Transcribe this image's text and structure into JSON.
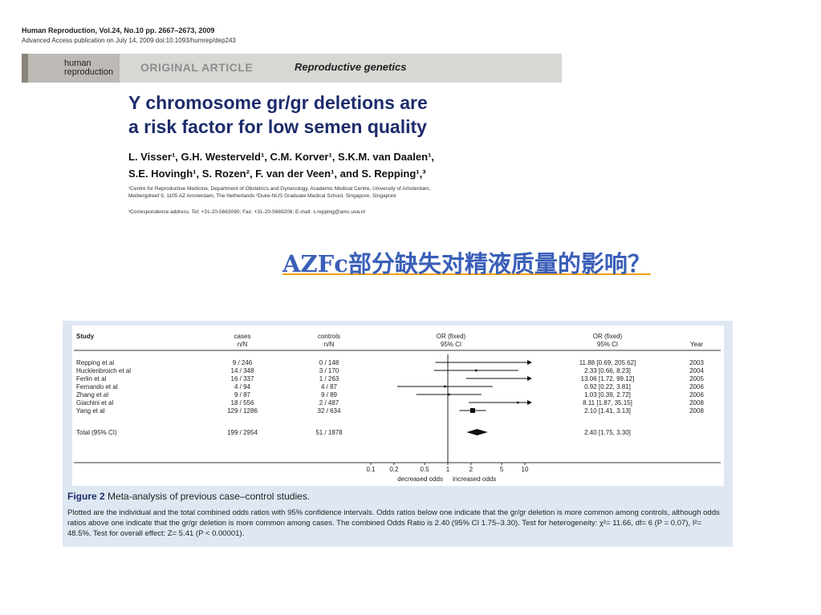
{
  "header": {
    "journal_line": "Human Reproduction, Vol.24, No.10 pp. 2667–2673, 2009",
    "advance_line": "Advanced Access publication on July 14, 2009    doi:10.1093/humrep/dep243",
    "logo_line1": "human",
    "logo_line2": "reproduction",
    "article_type": "ORIGINAL ARTICLE",
    "article_subtype": "Reproductive genetics"
  },
  "article": {
    "title_line1": "Y chromosome gr/gr deletions are",
    "title_line2": "a risk factor for low semen quality",
    "authors_line1": "L. Visser¹, G.H. Westerveld¹, C.M. Korver¹, S.K.M. van Daalen¹,",
    "authors_line2": "S.E. Hovingh¹, S. Rozen², F. van der Veen¹, and S. Repping¹,³",
    "affiliation_line1": "¹Centre for Reproductive Medicine, Department of Obstetrics and Gynecology, Academic Medical Centre, University of Amsterdam,",
    "affiliation_line2": "Meibergdreef 9, 1105 AZ Amsterdam, The Netherlands ²Duke-NUS Graduate Medical School, Singapore, Singapore",
    "correspondence": "³Correspondence address. Tel: +31-20-5663090; Fax: +31-20-5669206; E-mail: s.repping@amc.uva.nl"
  },
  "question_text": "AZFc部分缺失对精液质量的影响？",
  "figure": {
    "caption_label": "Figure 2",
    "caption_title": "Meta-analysis of previous case–control studies.",
    "caption_body": "Plotted are the individual and the total combined odds ratios with 95% confidence intervals. Odds ratios below one indicate that the gr/gr deletion is more common among controls, although odds ratios above one indicate that the gr/gr deletion is more common among cases. The combined Odds Ratio is 2.40 (95% CI 1.75–3.30). Test for heterogeneity: χ²= 11.66, df= 6 (P = 0.07), I²= 48.5%. Test for overall effect: Z= 5.41 (P < 0.00001)."
  },
  "chart_data": {
    "type": "forest",
    "columns": {
      "study": "Study",
      "cases": "cases",
      "cases_sub": "n/N",
      "controls": "controls",
      "controls_sub": "n/N",
      "or_plot": "OR (fixed)",
      "or_plot_sub": "95% CI",
      "or_text": "OR (fixed)",
      "or_text_sub": "95% CI",
      "year": "Year"
    },
    "studies": [
      {
        "study": "Repping et al",
        "cases": "9 / 246",
        "controls": "0 / 148",
        "or": 11.88,
        "lo": 0.69,
        "hi": 205.62,
        "or_label": "11.88 [0.69, 205.62]",
        "year": "2003"
      },
      {
        "study": "Hucklenbroich et al",
        "cases": "14 / 348",
        "controls": "3 / 170",
        "or": 2.33,
        "lo": 0.66,
        "hi": 8.23,
        "or_label": "2.33 [0.66, 8.23]",
        "year": "2004"
      },
      {
        "study": "Ferlin et al",
        "cases": "16 / 337",
        "controls": "1 / 263",
        "or": 13.06,
        "lo": 1.72,
        "hi": 99.12,
        "or_label": "13.06 [1.72, 99.12]",
        "year": "2005"
      },
      {
        "study": "Fernando et al",
        "cases": "4 / 94",
        "controls": "4 / 87",
        "or": 0.92,
        "lo": 0.22,
        "hi": 3.81,
        "or_label": "0.92 [0.22, 3.81]",
        "year": "2006"
      },
      {
        "study": "Zhang et al",
        "cases": "9 / 87",
        "controls": "9 / 89",
        "or": 1.03,
        "lo": 0.39,
        "hi": 2.72,
        "or_label": "1.03 [0.39, 2.72]",
        "year": "2006"
      },
      {
        "study": "Giachini et al",
        "cases": "18 / 556",
        "controls": "2 / 487",
        "or": 8.11,
        "lo": 1.87,
        "hi": 35.15,
        "or_label": "8.11 [1.87, 35.15]",
        "year": "2008"
      },
      {
        "study": "Yang et al",
        "cases": "129 / 1286",
        "controls": "32 / 634",
        "or": 2.1,
        "lo": 1.41,
        "hi": 3.13,
        "or_label": "2.10 [1.41, 3.13]",
        "year": "2008"
      }
    ],
    "total": {
      "study": "Total (95% CI)",
      "cases": "199 / 2954",
      "controls": "51 / 1878",
      "or": 2.4,
      "lo": 1.75,
      "hi": 3.3,
      "or_label": "2.40 [1.75, 3.30]"
    },
    "x_scale": "log",
    "x_ticks": [
      0.1,
      0.2,
      0.5,
      1,
      2,
      5,
      10
    ],
    "x_tick_labels": [
      "0.1",
      "0.2",
      "0.5",
      "1",
      "2",
      "5",
      "10"
    ],
    "xlim": [
      0.1,
      10
    ],
    "left_label": "decreased odds",
    "right_label": "increased odds"
  }
}
